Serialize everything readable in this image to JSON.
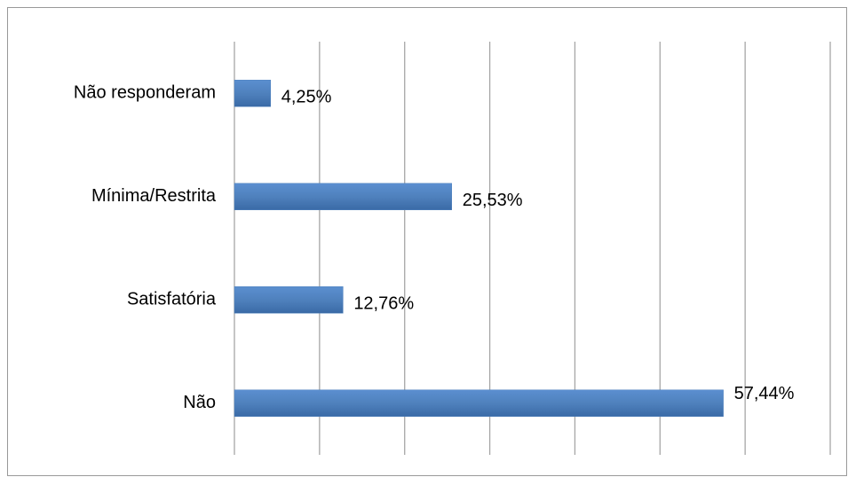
{
  "chart_data": {
    "type": "bar",
    "orientation": "horizontal",
    "categories": [
      "Não responderam",
      "Mínima/Restrita",
      "Satisfatória",
      "Não"
    ],
    "values": [
      4.25,
      25.53,
      12.76,
      57.44
    ],
    "value_labels": [
      "4,25%",
      "25,53%",
      "12,76%",
      "57,44%"
    ],
    "color": "#4f81bd",
    "xlim": [
      0,
      70
    ],
    "xticks": [
      0,
      10,
      20,
      30,
      40,
      50,
      60,
      70
    ],
    "grid": true
  }
}
